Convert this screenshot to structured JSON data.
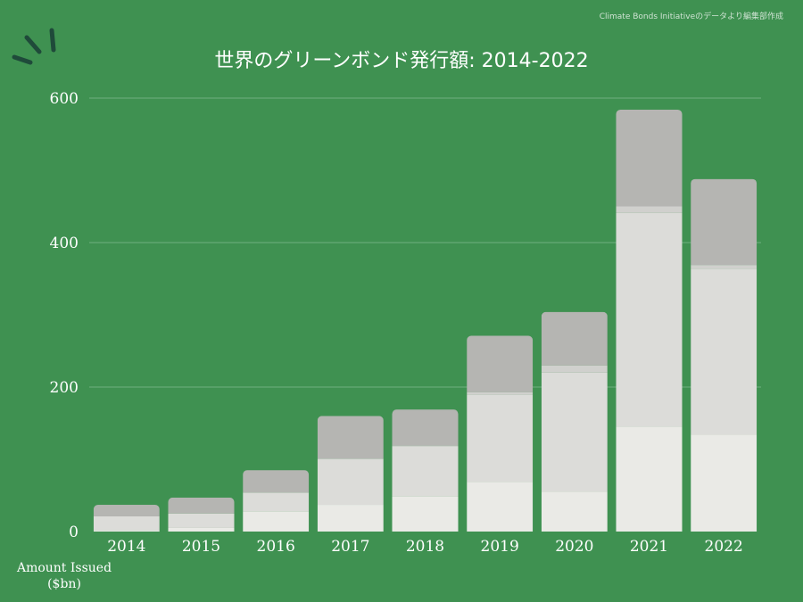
{
  "source_note": "Climate Bonds Initiativeのデータより編集部作成",
  "chart_data": {
    "type": "bar",
    "stacked": true,
    "title": "世界のグリーンボンド発行額:  2014-2022",
    "ylabel_line1": "Amount Issued",
    "ylabel_line2": "($bn)",
    "xlabel": "",
    "ylim": [
      0,
      600
    ],
    "yticks": [
      0,
      200,
      400,
      600
    ],
    "grid": true,
    "categories": [
      "2014",
      "2015",
      "2016",
      "2017",
      "2018",
      "2019",
      "2020",
      "2021",
      "2022"
    ],
    "series": [
      {
        "color": "#eaeae6",
        "values": [
          2,
          5,
          28,
          37,
          49,
          69,
          55,
          145,
          134
        ]
      },
      {
        "color": "#dcdcd9",
        "values": [
          19,
          20,
          26,
          63,
          69,
          120,
          165,
          296,
          230
        ]
      },
      {
        "color": "#d0d0cd",
        "values": [
          0,
          0,
          0,
          1,
          1,
          4,
          10,
          9,
          5
        ]
      },
      {
        "color": "#b5b5b2",
        "values": [
          16,
          22,
          31,
          59,
          50,
          78,
          74,
          134,
          119
        ]
      }
    ],
    "colors": {
      "background": "#3f9151",
      "gridline": "#6fae80",
      "text": "#ffffff",
      "deco": "#1f4a3a"
    }
  }
}
